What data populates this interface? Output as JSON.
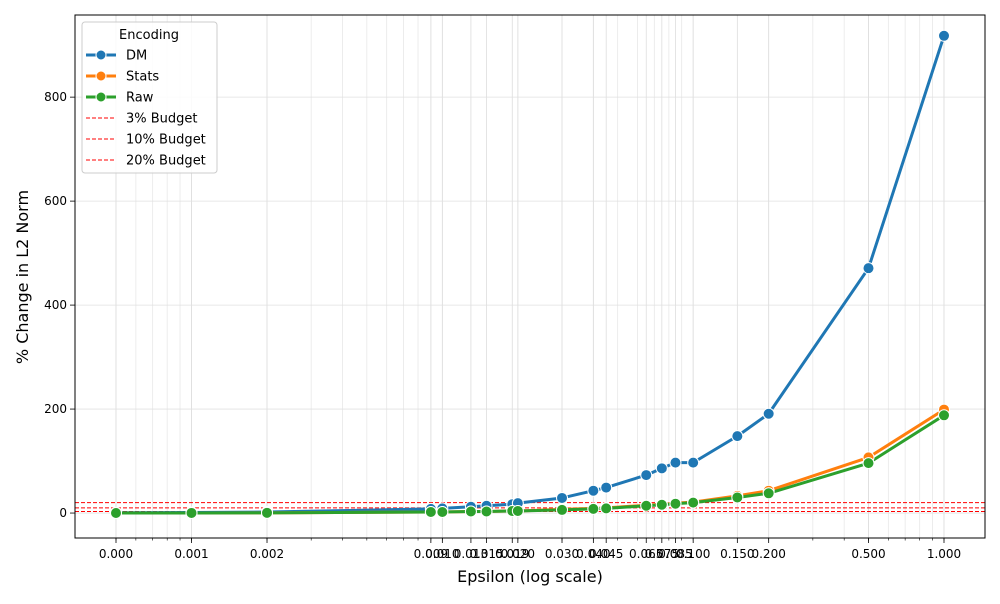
{
  "chart_data": {
    "type": "line",
    "title": "",
    "xlabel": "Epsilon (log scale)",
    "ylabel": "% Change in L2 Norm",
    "x_scale": "log",
    "ylim": [
      -48,
      958
    ],
    "grid": true,
    "legend_title": "Encoding",
    "legend_position": "top-left",
    "x_ticks": [
      {
        "value": 0.0005,
        "label": "0.000"
      },
      {
        "value": 0.001,
        "label": "0.001"
      },
      {
        "value": 0.002,
        "label": "0.002"
      },
      {
        "value": 0.009,
        "label": "0.009"
      },
      {
        "value": 0.01,
        "label": "0.010"
      },
      {
        "value": 0.013,
        "label": "0.013"
      },
      {
        "value": 0.015,
        "label": "0.015"
      },
      {
        "value": 0.019,
        "label": "0.019"
      },
      {
        "value": 0.02,
        "label": "0.020"
      },
      {
        "value": 0.03,
        "label": "0.030"
      },
      {
        "value": 0.04,
        "label": "0.040"
      },
      {
        "value": 0.045,
        "label": "0.045"
      },
      {
        "value": 0.065,
        "label": "0.065"
      },
      {
        "value": 0.075,
        "label": "0.075"
      },
      {
        "value": 0.085,
        "label": "0.085"
      },
      {
        "value": 0.1,
        "label": "0.100"
      },
      {
        "value": 0.15,
        "label": "0.150"
      },
      {
        "value": 0.2,
        "label": "0.200"
      },
      {
        "value": 0.5,
        "label": "0.500"
      },
      {
        "value": 1.0,
        "label": "1.000"
      }
    ],
    "y_ticks": [
      0,
      200,
      400,
      600,
      800
    ],
    "x": [
      0.0005,
      0.001,
      0.002,
      0.009,
      0.01,
      0.013,
      0.015,
      0.019,
      0.02,
      0.03,
      0.04,
      0.045,
      0.065,
      0.075,
      0.085,
      0.1,
      0.15,
      0.2,
      0.5,
      1.0
    ],
    "series": [
      {
        "name": "DM",
        "color": "#1f77b4",
        "values": [
          0.5,
          1,
          2,
          8,
          9,
          12,
          14,
          17,
          19,
          29,
          43,
          49,
          73,
          86,
          97,
          97,
          148,
          191,
          471,
          918
        ]
      },
      {
        "name": "Stats",
        "color": "#ff7f0e",
        "values": [
          0.1,
          0.2,
          0.4,
          2,
          2,
          3,
          3,
          4,
          4,
          7,
          9,
          10,
          15,
          17,
          19,
          21,
          33,
          43,
          107,
          199
        ]
      },
      {
        "name": "Raw",
        "color": "#2ca02c",
        "values": [
          0.1,
          0.2,
          0.4,
          2,
          2,
          3,
          3,
          4,
          4,
          6,
          8,
          9,
          14,
          16,
          18,
          20,
          30,
          38,
          96,
          188
        ]
      }
    ],
    "reference_lines": [
      {
        "name": "3% Budget",
        "y": 3,
        "color": "#ff0000"
      },
      {
        "name": "10% Budget",
        "y": 10,
        "color": "#ff0000"
      },
      {
        "name": "20% Budget",
        "y": 20,
        "color": "#ff0000"
      }
    ]
  }
}
